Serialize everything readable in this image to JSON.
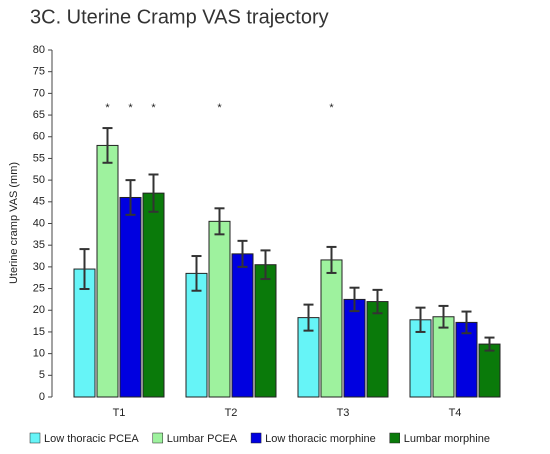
{
  "chart_data": {
    "type": "bar",
    "title": "3C. Uterine Cramp VAS trajectory",
    "y_label": "Uterine cramp VAS (mm)",
    "categories": [
      "T1",
      "T2",
      "T3",
      "T4"
    ],
    "series": [
      {
        "name": "Low thoracic PCEA",
        "color": "#66f4f7",
        "values": [
          29.5,
          28.5,
          18.3,
          17.8
        ],
        "errors": [
          4.6,
          4.0,
          3.0,
          2.8
        ]
      },
      {
        "name": "Lumbar PCEA",
        "color": "#9ef29e",
        "values": [
          58,
          40.5,
          31.6,
          18.5
        ],
        "errors": [
          4.0,
          3.0,
          3.0,
          2.5
        ]
      },
      {
        "name": "Low thoracic morphine",
        "color": "#0000e0",
        "values": [
          46,
          33,
          22.5,
          17.2
        ],
        "errors": [
          4.0,
          3.0,
          2.7,
          2.5
        ]
      },
      {
        "name": "Lumbar morphine",
        "color": "#0a7a0a",
        "values": [
          47,
          30.5,
          22,
          12.2
        ],
        "errors": [
          4.3,
          3.3,
          2.7,
          1.5
        ]
      }
    ],
    "annotations": [
      {
        "text": "*",
        "category": "T1",
        "series": "Lumbar PCEA"
      },
      {
        "text": "*",
        "category": "T1",
        "series": "Low thoracic morphine"
      },
      {
        "text": "*",
        "category": "T1",
        "series": "Lumbar morphine"
      },
      {
        "text": "*",
        "category": "T2",
        "series": "Lumbar PCEA"
      },
      {
        "text": "*",
        "category": "T3",
        "series": "Lumbar PCEA"
      }
    ],
    "ylim": [
      0,
      80
    ],
    "yticks": [
      0,
      5,
      10,
      15,
      20,
      25,
      30,
      35,
      40,
      45,
      50,
      55,
      60,
      65,
      70,
      75,
      80
    ],
    "grid": false,
    "legend": "bottom"
  }
}
